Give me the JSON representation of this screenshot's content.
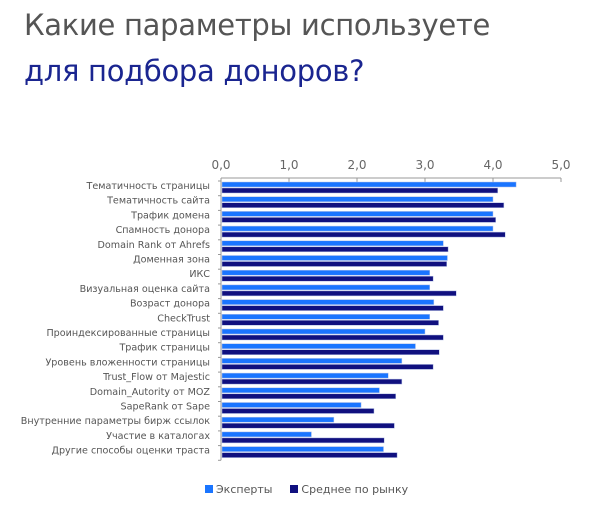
{
  "title": {
    "line1": "Какие параметры используете",
    "line2": "для подбора доноров?"
  },
  "chart_data": {
    "type": "bar",
    "orientation": "horizontal",
    "xlim": [
      0,
      5
    ],
    "ticks": [
      "0,0",
      "1,0",
      "2,0",
      "3,0",
      "4,0",
      "5,0"
    ],
    "tick_values": [
      0,
      1,
      2,
      3,
      4,
      5
    ],
    "grid": false,
    "legend_placement": "bottom",
    "categories": [
      "Тематичность страницы",
      "Тематичность сайта",
      "Трафик домена",
      "Спамность донора",
      "Domain Rank от Ahrefs",
      "Доменная зона",
      "ИКС",
      "Визуальная оценка сайта",
      "Возраст донора",
      "CheckTrust",
      "Проиндексированные страницы",
      "Трафик страницы",
      "Уровень вложенности страницы",
      "Trust_Flow от Majestic",
      "Domain_Autority от MOZ",
      "SapeRank от Sape",
      "Внутренние параметры бирж ссылок",
      "Участие в каталогах",
      "Другие способы оценки траста"
    ],
    "series": [
      {
        "name": "Эксперты",
        "color": "#1a75ff",
        "values": [
          4.34,
          4.0,
          4.0,
          4.0,
          3.27,
          3.33,
          3.07,
          3.07,
          3.13,
          3.07,
          3.0,
          2.86,
          2.66,
          2.46,
          2.33,
          2.06,
          1.66,
          1.33,
          2.39
        ]
      },
      {
        "name": "Среднее по рынку",
        "color": "#10107f",
        "values": [
          4.07,
          4.16,
          4.04,
          4.18,
          3.34,
          3.32,
          3.12,
          3.46,
          3.27,
          3.2,
          3.27,
          3.21,
          3.12,
          2.66,
          2.57,
          2.25,
          2.55,
          2.4,
          2.59
        ]
      }
    ]
  }
}
